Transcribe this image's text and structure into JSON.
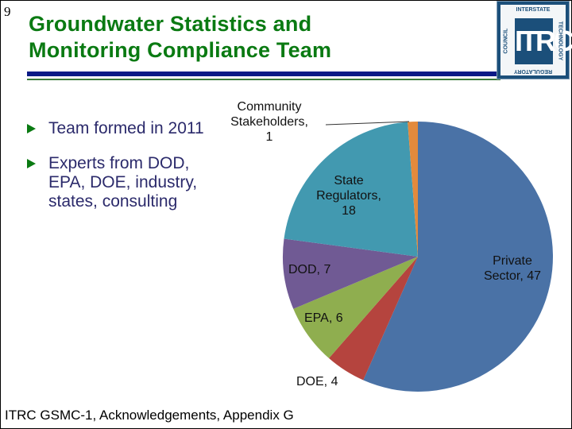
{
  "slide": {
    "number": "9",
    "title_line1": "Groundwater Statistics and",
    "title_line2": "Monitoring Compliance Team",
    "footer": "ITRC GSMC-1, Acknowledgements, Appendix G"
  },
  "logo": {
    "center": "ITRC",
    "top": "INTERSTATE",
    "right": "TECHNOLOGY",
    "bottom": "REGULATORY",
    "left": "COUNCIL"
  },
  "bullets": [
    {
      "text": "Team formed in 2011"
    },
    {
      "text": "Experts from DOD, EPA, DOE, industry, states, consulting"
    }
  ],
  "colors": {
    "title": "#0a7a12",
    "bullet_text": "#2b2a6b",
    "rule_blue": "#0b1a86",
    "rule_green": "#3a7a3a"
  },
  "chart_data": {
    "type": "pie",
    "title": "",
    "categories": [
      "Private Sector",
      "DOE",
      "EPA",
      "DOD",
      "State Regulators",
      "Community Stakeholders"
    ],
    "values": [
      47,
      4,
      6,
      7,
      18,
      1
    ],
    "colors": [
      "#4a72a6",
      "#b5443e",
      "#8fae4f",
      "#705a94",
      "#4299b0",
      "#e38a3c"
    ],
    "labels": [
      {
        "line1": "Private",
        "line2": "Sector, 47"
      },
      {
        "line1": "DOE, 4",
        "line2": ""
      },
      {
        "line1": "EPA, 6",
        "line2": ""
      },
      {
        "line1": "DOD, 7",
        "line2": ""
      },
      {
        "line1": "State",
        "line2": "Regulators,",
        "line3": "18"
      },
      {
        "line1": "Community",
        "line2": "Stakeholders,",
        "line3": "1"
      }
    ],
    "start_angle": "12 o'clock, clockwise",
    "legend": "none (data labels on slices)"
  }
}
